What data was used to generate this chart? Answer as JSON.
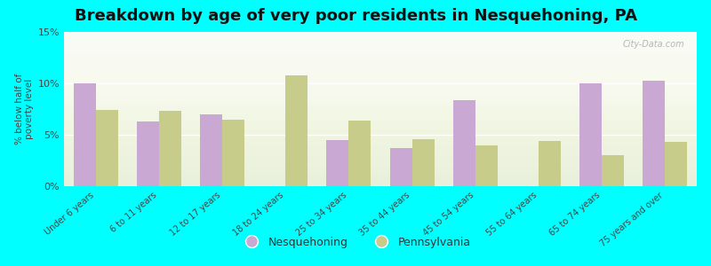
{
  "title": "Breakdown by age of very poor residents in Nesquehoning, PA",
  "categories": [
    "Under 6 years",
    "6 to 11 years",
    "12 to 17 years",
    "18 to 24 years",
    "25 to 34 years",
    "35 to 44 years",
    "45 to 54 years",
    "55 to 64 years",
    "65 to 74 years",
    "75 years and over"
  ],
  "nesquehoning": [
    10.0,
    6.3,
    7.0,
    0.0,
    4.5,
    3.7,
    8.4,
    0.0,
    10.0,
    10.3
  ],
  "pennsylvania": [
    7.4,
    7.3,
    6.5,
    10.8,
    6.4,
    4.6,
    4.0,
    4.4,
    3.0,
    4.3
  ],
  "nesquehoning_color": "#c9a9d4",
  "pennsylvania_color": "#c8cc8a",
  "background_color": "#00ffff",
  "ylabel": "% below half of\npoverty level",
  "ylim": [
    0,
    15
  ],
  "yticks": [
    0,
    5,
    10,
    15
  ],
  "ytick_labels": [
    "0%",
    "5%",
    "10%",
    "15%"
  ],
  "title_fontsize": 13,
  "bar_width": 0.35,
  "watermark": "City-Data.com"
}
